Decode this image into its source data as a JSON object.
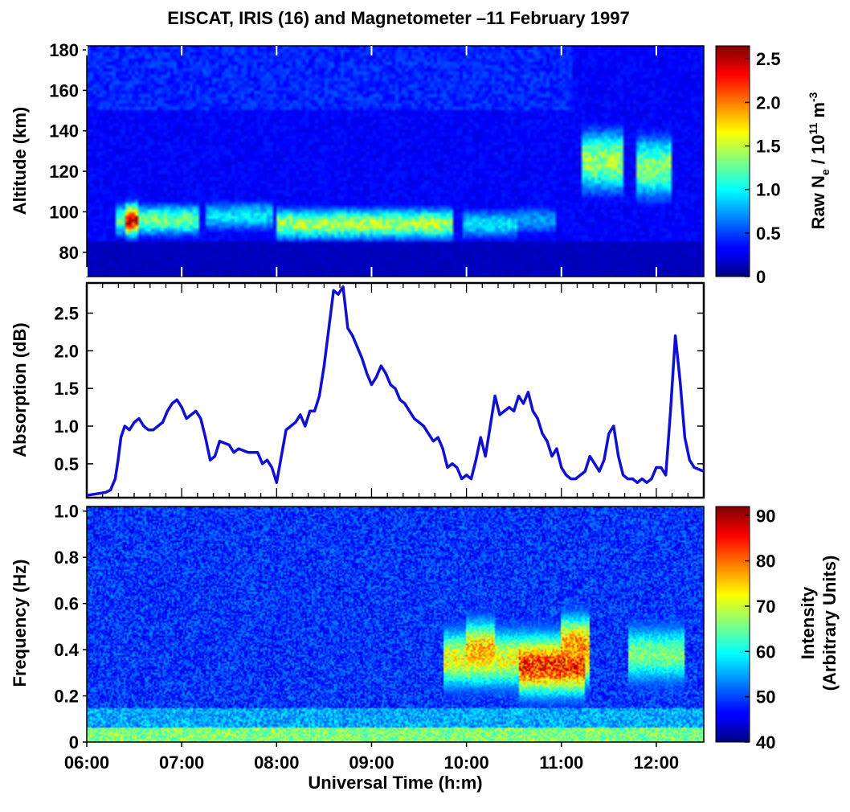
{
  "title": "EISCAT, IRIS (16) and Magnetometer –11 February 1997",
  "chart_data": [
    {
      "type": "heatmap",
      "panel": "top",
      "ylabel": "Altitude (km)",
      "ylim": [
        68,
        182
      ],
      "yticks": [
        80,
        100,
        120,
        140,
        160,
        180
      ],
      "xlim": [
        6.0,
        12.5
      ],
      "colorbar": {
        "label_main": "Raw N",
        "label_sub": "e",
        "label_unit": " / 10",
        "label_exp": "11",
        "label_unit2": " m",
        "label_exp2": "-3",
        "range": [
          0,
          2.65
        ],
        "ticks": [
          "0",
          "0.5",
          "1.0",
          "1.5",
          "2.0",
          "2.5"
        ],
        "tick_values": [
          0,
          0.5,
          1.0,
          1.5,
          2.0,
          2.5
        ]
      },
      "features": [
        {
          "t0": 6.4,
          "t1": 6.55,
          "alt": 96,
          "peak": 2.5
        },
        {
          "t0": 6.3,
          "t1": 7.2,
          "alt": 96,
          "peak": 1.4
        },
        {
          "t0": 7.25,
          "t1": 7.95,
          "alt": 98,
          "peak": 1.0
        },
        {
          "t0": 8.0,
          "t1": 9.85,
          "alt": 94,
          "peak": 1.55
        },
        {
          "t0": 9.95,
          "t1": 10.55,
          "alt": 94,
          "peak": 1.0
        },
        {
          "t0": 10.55,
          "t1": 10.95,
          "alt": 96,
          "peak": 0.8
        },
        {
          "t0": 11.2,
          "t1": 11.65,
          "alt": 125,
          "peak": 1.5
        },
        {
          "t0": 11.8,
          "t1": 12.15,
          "alt": 122,
          "peak": 1.45
        }
      ]
    },
    {
      "type": "line",
      "panel": "middle",
      "ylabel": "Absorption (dB)",
      "ylim": [
        0.05,
        2.9
      ],
      "yticks": [
        0.5,
        1.0,
        1.5,
        2.0,
        2.5
      ],
      "ytick_labels": [
        "0.5",
        "1.0",
        "1.5",
        "2.0",
        "2.5"
      ],
      "xlim": [
        6.0,
        12.5
      ],
      "series": [
        {
          "color": "#1010d0",
          "x": [
            6.0,
            6.1,
            6.2,
            6.25,
            6.3,
            6.33,
            6.36,
            6.4,
            6.45,
            6.5,
            6.55,
            6.6,
            6.65,
            6.7,
            6.8,
            6.85,
            6.9,
            6.95,
            7.0,
            7.05,
            7.1,
            7.15,
            7.2,
            7.25,
            7.3,
            7.35,
            7.4,
            7.5,
            7.55,
            7.6,
            7.7,
            7.8,
            7.85,
            7.9,
            7.95,
            8.0,
            8.05,
            8.1,
            8.15,
            8.2,
            8.25,
            8.3,
            8.35,
            8.4,
            8.45,
            8.5,
            8.55,
            8.6,
            8.65,
            8.7,
            8.75,
            8.8,
            8.9,
            8.95,
            9.0,
            9.05,
            9.1,
            9.15,
            9.2,
            9.25,
            9.3,
            9.35,
            9.4,
            9.45,
            9.5,
            9.55,
            9.6,
            9.65,
            9.7,
            9.75,
            9.8,
            9.85,
            9.9,
            9.95,
            10.0,
            10.05,
            10.1,
            10.15,
            10.2,
            10.25,
            10.3,
            10.35,
            10.4,
            10.45,
            10.5,
            10.55,
            10.6,
            10.65,
            10.7,
            10.75,
            10.8,
            10.85,
            10.9,
            10.95,
            11.0,
            11.05,
            11.1,
            11.15,
            11.2,
            11.25,
            11.3,
            11.35,
            11.4,
            11.45,
            11.5,
            11.55,
            11.6,
            11.65,
            11.7,
            11.75,
            11.8,
            11.85,
            11.9,
            11.95,
            12.0,
            12.05,
            12.1,
            12.15,
            12.2,
            12.25,
            12.3,
            12.35,
            12.4,
            12.5
          ],
          "y": [
            0.08,
            0.1,
            0.12,
            0.15,
            0.3,
            0.55,
            0.85,
            1.0,
            0.95,
            1.05,
            1.1,
            1.0,
            0.95,
            0.95,
            1.05,
            1.2,
            1.3,
            1.35,
            1.25,
            1.1,
            1.15,
            1.2,
            1.1,
            0.85,
            0.55,
            0.6,
            0.8,
            0.75,
            0.65,
            0.7,
            0.65,
            0.65,
            0.5,
            0.55,
            0.45,
            0.25,
            0.6,
            0.95,
            1.0,
            1.05,
            1.15,
            1.0,
            1.2,
            1.2,
            1.4,
            1.8,
            2.3,
            2.8,
            2.75,
            2.85,
            2.3,
            2.2,
            1.9,
            1.7,
            1.55,
            1.65,
            1.8,
            1.7,
            1.55,
            1.5,
            1.35,
            1.3,
            1.2,
            1.1,
            1.05,
            1.0,
            0.9,
            0.8,
            0.85,
            0.7,
            0.45,
            0.5,
            0.45,
            0.3,
            0.35,
            0.3,
            0.55,
            0.85,
            0.6,
            1.0,
            1.4,
            1.15,
            1.2,
            1.25,
            1.2,
            1.4,
            1.3,
            1.45,
            1.2,
            1.1,
            0.9,
            0.8,
            0.6,
            0.7,
            0.45,
            0.35,
            0.3,
            0.3,
            0.35,
            0.4,
            0.6,
            0.5,
            0.4,
            0.55,
            0.9,
            1.0,
            0.6,
            0.35,
            0.3,
            0.3,
            0.25,
            0.3,
            0.25,
            0.3,
            0.45,
            0.45,
            0.35,
            1.2,
            2.2,
            1.6,
            0.85,
            0.55,
            0.45,
            0.4
          ]
        }
      ]
    },
    {
      "type": "heatmap",
      "panel": "bottom",
      "ylabel": "Frequency (Hz)",
      "xlabel": "Universal Time (h:m)",
      "ylim": [
        0,
        1.02
      ],
      "yticks": [
        0,
        0.2,
        0.4,
        0.6,
        0.8,
        1.0
      ],
      "ytick_labels": [
        "0",
        "0.2",
        "0.4",
        "0.6",
        "0.8",
        "1.0"
      ],
      "xlim": [
        6.0,
        12.5
      ],
      "xticks": [
        6,
        7,
        8,
        9,
        10,
        11,
        12
      ],
      "xtick_labels": [
        "06:00",
        "07:00",
        "08:00",
        "09:00",
        "10:00",
        "11:00",
        "12:00"
      ],
      "colorbar": {
        "label_line1": "Intensity",
        "label_line2": "(Arbitrary Units)",
        "range": [
          40,
          92
        ],
        "ticks": [
          "40",
          "50",
          "60",
          "70",
          "80",
          "90"
        ],
        "tick_values": [
          40,
          50,
          60,
          70,
          80,
          90
        ]
      },
      "features": [
        {
          "t0": 9.75,
          "t1": 11.3,
          "freq": 0.36,
          "peak": 75
        },
        {
          "t0": 10.55,
          "t1": 11.25,
          "freq": 0.33,
          "peak": 88
        },
        {
          "t0": 10.0,
          "t1": 10.3,
          "freq": 0.4,
          "peak": 80
        },
        {
          "t0": 11.0,
          "t1": 11.3,
          "freq": 0.42,
          "peak": 82
        },
        {
          "t0": 11.7,
          "t1": 12.3,
          "freq": 0.38,
          "peak": 68
        }
      ]
    }
  ]
}
